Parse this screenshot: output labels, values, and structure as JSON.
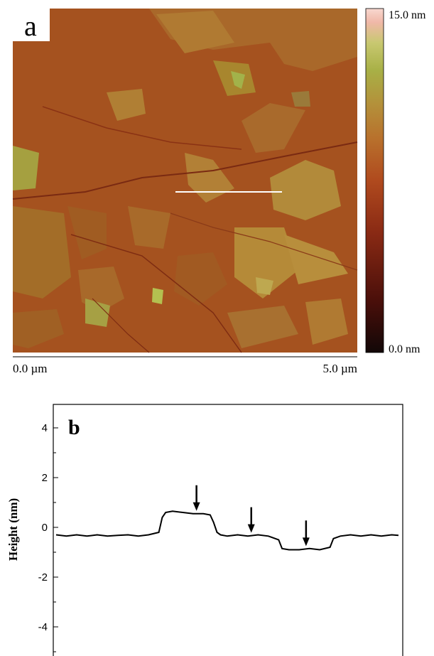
{
  "panel_a": {
    "label": "a",
    "scale_max_label": "15.0 nm",
    "scale_min_label": "0.0 nm",
    "x_start_label": "0.0 µm",
    "x_end_label": "5.0 µm",
    "colorbar_stops": [
      "#120707",
      "#4a0f0a",
      "#8a2a14",
      "#b04a1e",
      "#b8702c",
      "#b4903a",
      "#a8b046",
      "#c8c870",
      "#f0b8a8",
      "#f8d8d0"
    ]
  },
  "panel_b": {
    "label": "b",
    "ylabel": "Height (nm)"
  },
  "chart_data": {
    "type": "line",
    "title": "",
    "xlabel": "",
    "ylabel": "Height (nm)",
    "ylim": [
      -5,
      5
    ],
    "y_ticks": [
      4,
      2,
      0,
      -2,
      -4
    ],
    "y_tick_labels": [
      "4",
      "2",
      "0",
      "-2",
      "-4"
    ],
    "xlim": [
      0,
      1
    ],
    "grid": false,
    "series": [
      {
        "x": [
          0.0,
          0.03,
          0.06,
          0.09,
          0.12,
          0.15,
          0.18,
          0.21,
          0.24,
          0.27,
          0.3,
          0.31,
          0.32,
          0.34,
          0.37,
          0.4,
          0.43,
          0.45,
          0.46,
          0.47,
          0.48,
          0.5,
          0.53,
          0.56,
          0.59,
          0.62,
          0.65,
          0.66,
          0.68,
          0.71,
          0.74,
          0.77,
          0.8,
          0.81,
          0.83,
          0.86,
          0.89,
          0.92,
          0.95,
          0.98,
          1.0
        ],
        "y": [
          -0.3,
          -0.35,
          -0.3,
          -0.35,
          -0.3,
          -0.35,
          -0.32,
          -0.3,
          -0.35,
          -0.3,
          -0.2,
          0.4,
          0.6,
          0.65,
          0.6,
          0.55,
          0.55,
          0.5,
          0.2,
          -0.2,
          -0.3,
          -0.35,
          -0.3,
          -0.35,
          -0.3,
          -0.35,
          -0.5,
          -0.85,
          -0.9,
          -0.9,
          -0.85,
          -0.9,
          -0.8,
          -0.45,
          -0.35,
          -0.3,
          -0.35,
          -0.3,
          -0.35,
          -0.3,
          -0.32
        ]
      }
    ],
    "arrows_at_x": [
      0.41,
      0.57,
      0.73
    ]
  }
}
